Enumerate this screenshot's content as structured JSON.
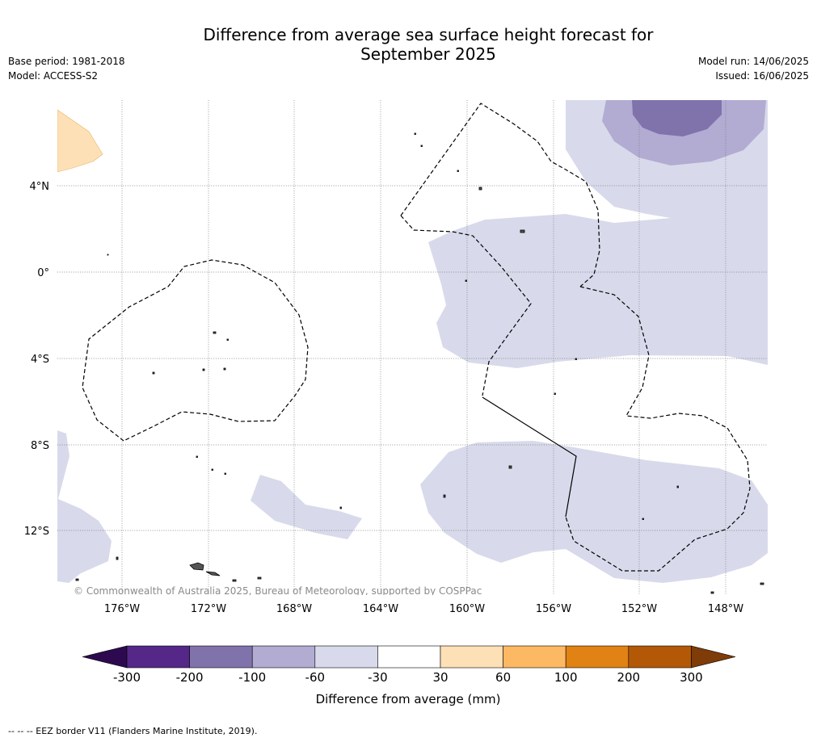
{
  "title_line1": "Difference from average sea surface height forecast for",
  "title_line2": "September 2025",
  "base_period": "Base period: 1981-2018",
  "model": "Model: ACCESS-S2",
  "model_run": "Model run: 14/06/2025",
  "issued": "Issued: 16/06/2025",
  "lat_labels": [
    "4°N",
    "0°",
    "4°S",
    "8°S",
    "12°S"
  ],
  "lon_labels": [
    "176°W",
    "172°W",
    "168°W",
    "164°W",
    "160°W",
    "156°W",
    "152°W",
    "148°W"
  ],
  "copyright": "© Commonwealth of Australia 2025, Bureau of Meteorology, supported by COSPPac",
  "colorbar": {
    "ticks": [
      "-300",
      "-200",
      "-100",
      "-60",
      "-30",
      "30",
      "60",
      "100",
      "200",
      "300"
    ],
    "colors": [
      "#2d0a4f",
      "#542788",
      "#8073ac",
      "#b2abd2",
      "#d8daeb",
      "#ffffff",
      "#fee0b6",
      "#fdb863",
      "#e08214",
      "#b35806",
      "#7f3b08"
    ],
    "label": "Difference from average (mm)"
  },
  "footer": "--  --  -- EEZ border V11 (Flanders Marine Institute, 2019)."
}
